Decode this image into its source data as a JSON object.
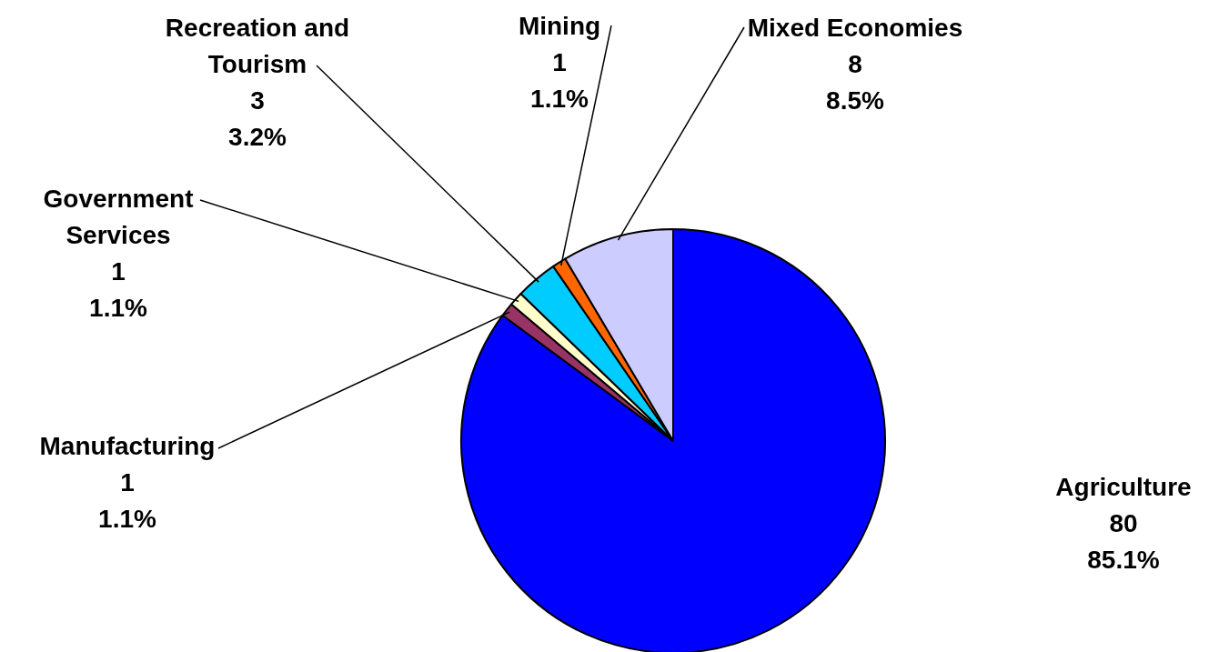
{
  "chart_data": {
    "type": "pie",
    "categories": [
      "Agriculture",
      "Manufacturing",
      "Government Services",
      "Recreation and Tourism",
      "Mining",
      "Mixed Economies"
    ],
    "values": [
      80,
      1,
      1,
      3,
      1,
      8
    ],
    "colors": [
      "#0000ff",
      "#993366",
      "#ffffcc",
      "#00ccff",
      "#ff6600",
      "#ccccff"
    ],
    "data_labels": true,
    "annotations": [
      {
        "text": "85.1%",
        "x": "Agriculture"
      },
      {
        "text": "1.1%",
        "x": "Manufacturing"
      },
      {
        "text": "1.1%",
        "x": "Government Services"
      },
      {
        "text": "3.2%",
        "x": "Recreation and Tourism"
      },
      {
        "text": "1.1%",
        "x": "Mining"
      },
      {
        "text": "8.5%",
        "x": "Mixed Economies"
      }
    ]
  }
}
